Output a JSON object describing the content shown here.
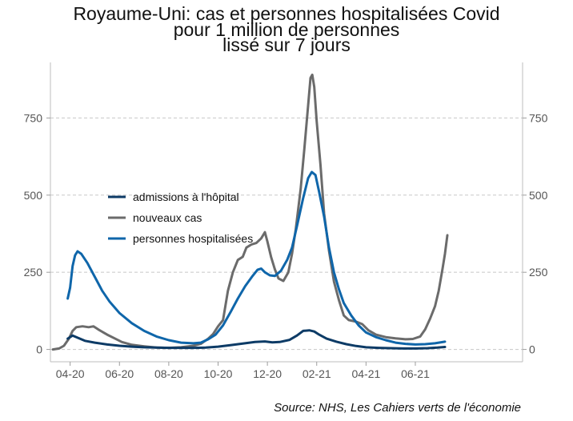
{
  "chart_data": {
    "type": "line",
    "title": [
      "Royaume-Uni: cas et personnes hospitalisées Covid",
      "pour 1 million de personnes",
      "lissé sur 7 jours"
    ],
    "source": "Source: NHS, Les Cahiers verts de l'économie",
    "xlabel": "",
    "ylabel": "",
    "x_unit": "months since 2020-01",
    "xlim": [
      2.2,
      21.35
    ],
    "ylim": [
      -40,
      930
    ],
    "y_ticks": [
      0,
      250,
      500,
      750
    ],
    "x_ticks": [
      {
        "label": "04-20",
        "at": 3.0
      },
      {
        "label": "06-20",
        "at": 5.0
      },
      {
        "label": "08-20",
        "at": 7.0
      },
      {
        "label": "10-20",
        "at": 9.0
      },
      {
        "label": "12-20",
        "at": 11.0
      },
      {
        "label": "02-21",
        "at": 13.0
      },
      {
        "label": "04-21",
        "at": 15.0
      },
      {
        "label": "06-21",
        "at": 17.0
      }
    ],
    "grid": {
      "horizontal": true,
      "style": "dashed"
    },
    "secondary_y_axis": true,
    "legend_position": "center-left",
    "series": [
      {
        "name": "admissions à l'hôpital",
        "color": "#0d3b66",
        "points": [
          [
            2.9,
            35
          ],
          [
            3.1,
            45
          ],
          [
            3.3,
            38
          ],
          [
            3.6,
            28
          ],
          [
            4.0,
            22
          ],
          [
            4.5,
            16
          ],
          [
            5.0,
            12
          ],
          [
            5.5,
            9
          ],
          [
            6.0,
            7
          ],
          [
            7.0,
            5
          ],
          [
            8.0,
            5
          ],
          [
            8.5,
            6
          ],
          [
            9.0,
            9
          ],
          [
            9.5,
            14
          ],
          [
            10.0,
            19
          ],
          [
            10.5,
            24
          ],
          [
            10.9,
            26
          ],
          [
            11.2,
            23
          ],
          [
            11.5,
            24
          ],
          [
            11.9,
            31
          ],
          [
            12.2,
            45
          ],
          [
            12.45,
            60
          ],
          [
            12.7,
            62
          ],
          [
            12.9,
            58
          ],
          [
            13.1,
            48
          ],
          [
            13.4,
            35
          ],
          [
            13.8,
            25
          ],
          [
            14.2,
            17
          ],
          [
            14.6,
            11
          ],
          [
            15.0,
            7
          ],
          [
            15.5,
            5
          ],
          [
            16.0,
            4
          ],
          [
            16.5,
            3
          ],
          [
            17.0,
            3
          ],
          [
            17.5,
            4
          ],
          [
            17.9,
            6
          ],
          [
            18.2,
            8
          ]
        ]
      },
      {
        "name": "nouveaux cas",
        "color": "#6b6b6b",
        "points": [
          [
            2.3,
            0
          ],
          [
            2.55,
            3
          ],
          [
            2.75,
            12
          ],
          [
            2.95,
            35
          ],
          [
            3.1,
            60
          ],
          [
            3.25,
            72
          ],
          [
            3.5,
            75
          ],
          [
            3.75,
            72
          ],
          [
            3.95,
            75
          ],
          [
            4.2,
            62
          ],
          [
            4.5,
            48
          ],
          [
            4.8,
            36
          ],
          [
            5.1,
            24
          ],
          [
            5.5,
            15
          ],
          [
            6.0,
            10
          ],
          [
            6.5,
            6
          ],
          [
            7.0,
            5
          ],
          [
            7.5,
            7
          ],
          [
            8.0,
            12
          ],
          [
            8.3,
            18
          ],
          [
            8.6,
            35
          ],
          [
            8.8,
            50
          ],
          [
            9.0,
            75
          ],
          [
            9.2,
            95
          ],
          [
            9.4,
            190
          ],
          [
            9.6,
            250
          ],
          [
            9.8,
            290
          ],
          [
            10.0,
            300
          ],
          [
            10.15,
            330
          ],
          [
            10.35,
            340
          ],
          [
            10.55,
            345
          ],
          [
            10.75,
            360
          ],
          [
            10.9,
            380
          ],
          [
            11.0,
            350
          ],
          [
            11.15,
            300
          ],
          [
            11.3,
            260
          ],
          [
            11.45,
            230
          ],
          [
            11.65,
            222
          ],
          [
            11.85,
            250
          ],
          [
            12.0,
            310
          ],
          [
            12.15,
            390
          ],
          [
            12.35,
            520
          ],
          [
            12.5,
            650
          ],
          [
            12.65,
            790
          ],
          [
            12.75,
            880
          ],
          [
            12.82,
            890
          ],
          [
            12.9,
            850
          ],
          [
            13.0,
            740
          ],
          [
            13.15,
            600
          ],
          [
            13.3,
            440
          ],
          [
            13.5,
            320
          ],
          [
            13.7,
            220
          ],
          [
            13.9,
            160
          ],
          [
            14.1,
            110
          ],
          [
            14.3,
            95
          ],
          [
            14.6,
            90
          ],
          [
            14.85,
            82
          ],
          [
            15.1,
            62
          ],
          [
            15.4,
            48
          ],
          [
            15.8,
            40
          ],
          [
            16.2,
            36
          ],
          [
            16.6,
            33
          ],
          [
            16.9,
            34
          ],
          [
            17.2,
            42
          ],
          [
            17.4,
            65
          ],
          [
            17.6,
            100
          ],
          [
            17.8,
            140
          ],
          [
            17.95,
            190
          ],
          [
            18.1,
            260
          ],
          [
            18.2,
            310
          ],
          [
            18.3,
            370
          ]
        ]
      },
      {
        "name": "personnes hospitalisées",
        "color": "#0f66aa",
        "points": [
          [
            2.9,
            165
          ],
          [
            3.0,
            200
          ],
          [
            3.1,
            270
          ],
          [
            3.2,
            305
          ],
          [
            3.3,
            318
          ],
          [
            3.45,
            310
          ],
          [
            3.7,
            280
          ],
          [
            4.0,
            235
          ],
          [
            4.3,
            190
          ],
          [
            4.6,
            155
          ],
          [
            5.0,
            118
          ],
          [
            5.5,
            85
          ],
          [
            6.0,
            60
          ],
          [
            6.5,
            42
          ],
          [
            7.0,
            30
          ],
          [
            7.5,
            22
          ],
          [
            8.0,
            20
          ],
          [
            8.3,
            22
          ],
          [
            8.6,
            33
          ],
          [
            8.9,
            48
          ],
          [
            9.2,
            78
          ],
          [
            9.5,
            120
          ],
          [
            9.8,
            165
          ],
          [
            10.1,
            205
          ],
          [
            10.4,
            238
          ],
          [
            10.6,
            258
          ],
          [
            10.75,
            262
          ],
          [
            10.9,
            250
          ],
          [
            11.1,
            240
          ],
          [
            11.3,
            238
          ],
          [
            11.55,
            255
          ],
          [
            11.8,
            290
          ],
          [
            12.0,
            330
          ],
          [
            12.2,
            400
          ],
          [
            12.45,
            490
          ],
          [
            12.65,
            555
          ],
          [
            12.8,
            575
          ],
          [
            12.95,
            565
          ],
          [
            13.1,
            510
          ],
          [
            13.3,
            430
          ],
          [
            13.5,
            330
          ],
          [
            13.7,
            250
          ],
          [
            13.9,
            195
          ],
          [
            14.1,
            150
          ],
          [
            14.4,
            110
          ],
          [
            14.7,
            78
          ],
          [
            15.0,
            55
          ],
          [
            15.4,
            40
          ],
          [
            15.8,
            30
          ],
          [
            16.2,
            22
          ],
          [
            16.6,
            18
          ],
          [
            17.0,
            16
          ],
          [
            17.4,
            17
          ],
          [
            17.8,
            20
          ],
          [
            18.2,
            25
          ]
        ]
      }
    ]
  }
}
